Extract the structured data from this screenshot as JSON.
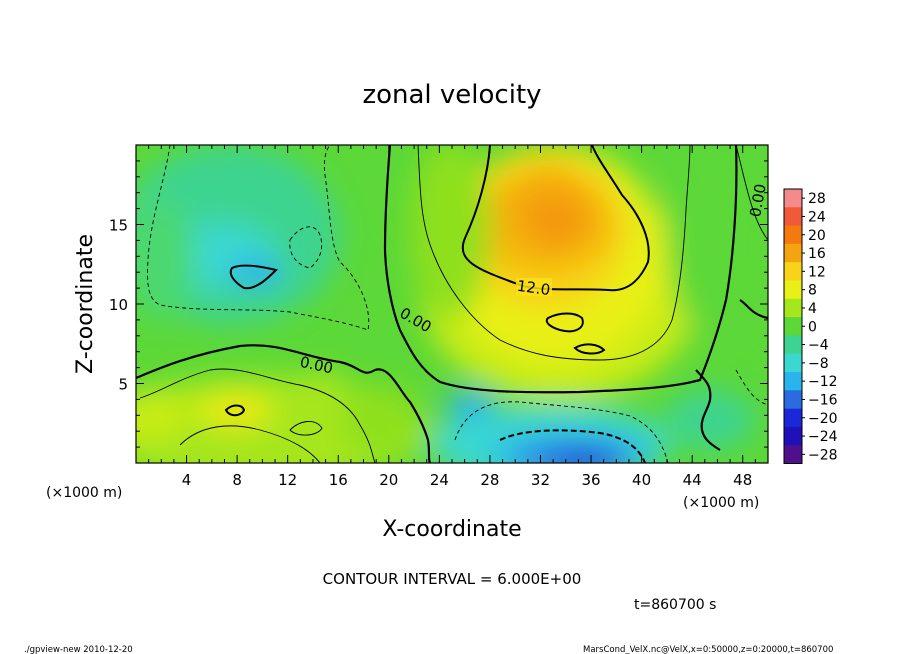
{
  "chart_data": {
    "type": "heatmap",
    "title": "zonal velocity",
    "xlabel": "X-coordinate",
    "ylabel": "Z-coordinate",
    "x_unit_label": "(×1000 m)",
    "z_unit_label": "(×1000 m)",
    "xlim": [
      0,
      50
    ],
    "ylim": [
      0,
      20
    ],
    "x_ticks": [
      4,
      8,
      12,
      16,
      20,
      24,
      28,
      32,
      36,
      40,
      44,
      48
    ],
    "y_ticks": [
      5,
      10,
      15
    ],
    "colorbar": {
      "levels": [
        28,
        24,
        20,
        16,
        12,
        8,
        4,
        0,
        -4,
        -8,
        -12,
        -16,
        -20,
        -24,
        -28
      ],
      "labels": [
        "28",
        "24",
        "20",
        "16",
        "12",
        "8",
        "4",
        "0",
        "−4",
        "−8",
        "−12",
        "−16",
        "−20",
        "−24",
        "−28"
      ],
      "colors": [
        "#f48a8a",
        "#f05a38",
        "#f47a10",
        "#f4a410",
        "#f8d418",
        "#e8f018",
        "#a6e61c",
        "#5cd838",
        "#3cd490",
        "#3ad8d0",
        "#2ab4ec",
        "#2a6ce0",
        "#1a28d8",
        "#2010b8",
        "#50108c"
      ]
    },
    "contour_labels": [
      "12.0",
      "0.00",
      "0.00",
      "0.00"
    ],
    "contour_interval_text": "CONTOUR INTERVAL = 6.000E+00",
    "time_text": "t=860700 s",
    "footer_left": "./gpview-new   2010-12-20",
    "footer_right": "MarsCond_VelX.nc@VelX,x=0:50000,z=0:20000,t=860700"
  }
}
